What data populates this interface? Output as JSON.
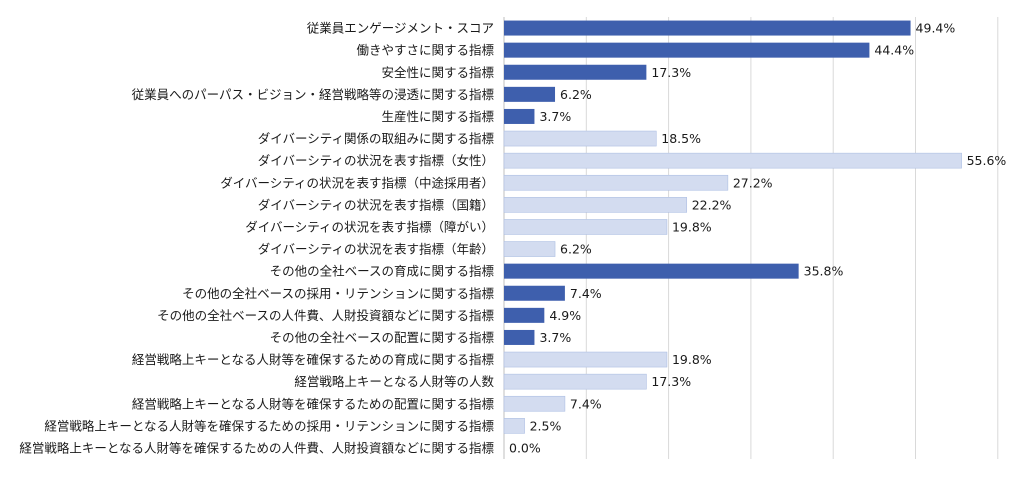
{
  "chart_data": {
    "type": "bar",
    "orientation": "horizontal",
    "title": "",
    "xlabel": "",
    "ylabel": "",
    "xlim": [
      0,
      60
    ],
    "grid": true,
    "legend": "none",
    "value_suffix": "%",
    "colors": {
      "dark": "#3e5fad",
      "light": "#d3dcf0",
      "light_stroke": "#aebfe3"
    },
    "categories": [
      "従業員エンゲージメント・スコア",
      "働きやすさに関する指標",
      "安全性に関する指標",
      "従業員へのパーパス・ビジョン・経営戦略等の浸透に関する指標",
      "生産性に関する指標",
      "ダイバーシティ関係の取組みに関する指標",
      "ダイバーシティの状況を表す指標（女性）",
      "ダイバーシティの状況を表す指標（中途採用者）",
      "ダイバーシティの状況を表す指標（国籍）",
      "ダイバーシティの状況を表す指標（障がい）",
      "ダイバーシティの状況を表す指標（年齢）",
      "その他の全社ベースの育成に関する指標",
      "その他の全社ベースの採用・リテンションに関する指標",
      "その他の全社ベースの人件費、人財投資額などに関する指標",
      "その他の全社ベースの配置に関する指標",
      "経営戦略上キーとなる人財等を確保するための育成に関する指標",
      "経営戦略上キーとなる人財等の人数",
      "経営戦略上キーとなる人財等を確保するための配置に関する指標",
      "経営戦略上キーとなる人財等を確保するための採用・リテンションに関する指標",
      "経営戦略上キーとなる人財等を確保するための人件費、人財投資額などに関する指標"
    ],
    "values": [
      49.4,
      44.4,
      17.3,
      6.2,
      3.7,
      18.5,
      55.6,
      27.2,
      22.2,
      19.8,
      6.2,
      35.8,
      7.4,
      4.9,
      3.7,
      19.8,
      17.3,
      7.4,
      2.5,
      0.0
    ],
    "value_labels": [
      "49.4%",
      "44.4%",
      "17.3%",
      "6.2%",
      "3.7%",
      "18.5%",
      "55.6%",
      "27.2%",
      "22.2%",
      "19.8%",
      "6.2%",
      "35.8%",
      "7.4%",
      "4.9%",
      "3.7%",
      "19.8%",
      "17.3%",
      "7.4%",
      "2.5%",
      "0.0%"
    ],
    "bar_shade": [
      "dark",
      "dark",
      "dark",
      "dark",
      "dark",
      "light",
      "light",
      "light",
      "light",
      "light",
      "light",
      "dark",
      "dark",
      "dark",
      "dark",
      "light",
      "light",
      "light",
      "light",
      "light"
    ]
  }
}
